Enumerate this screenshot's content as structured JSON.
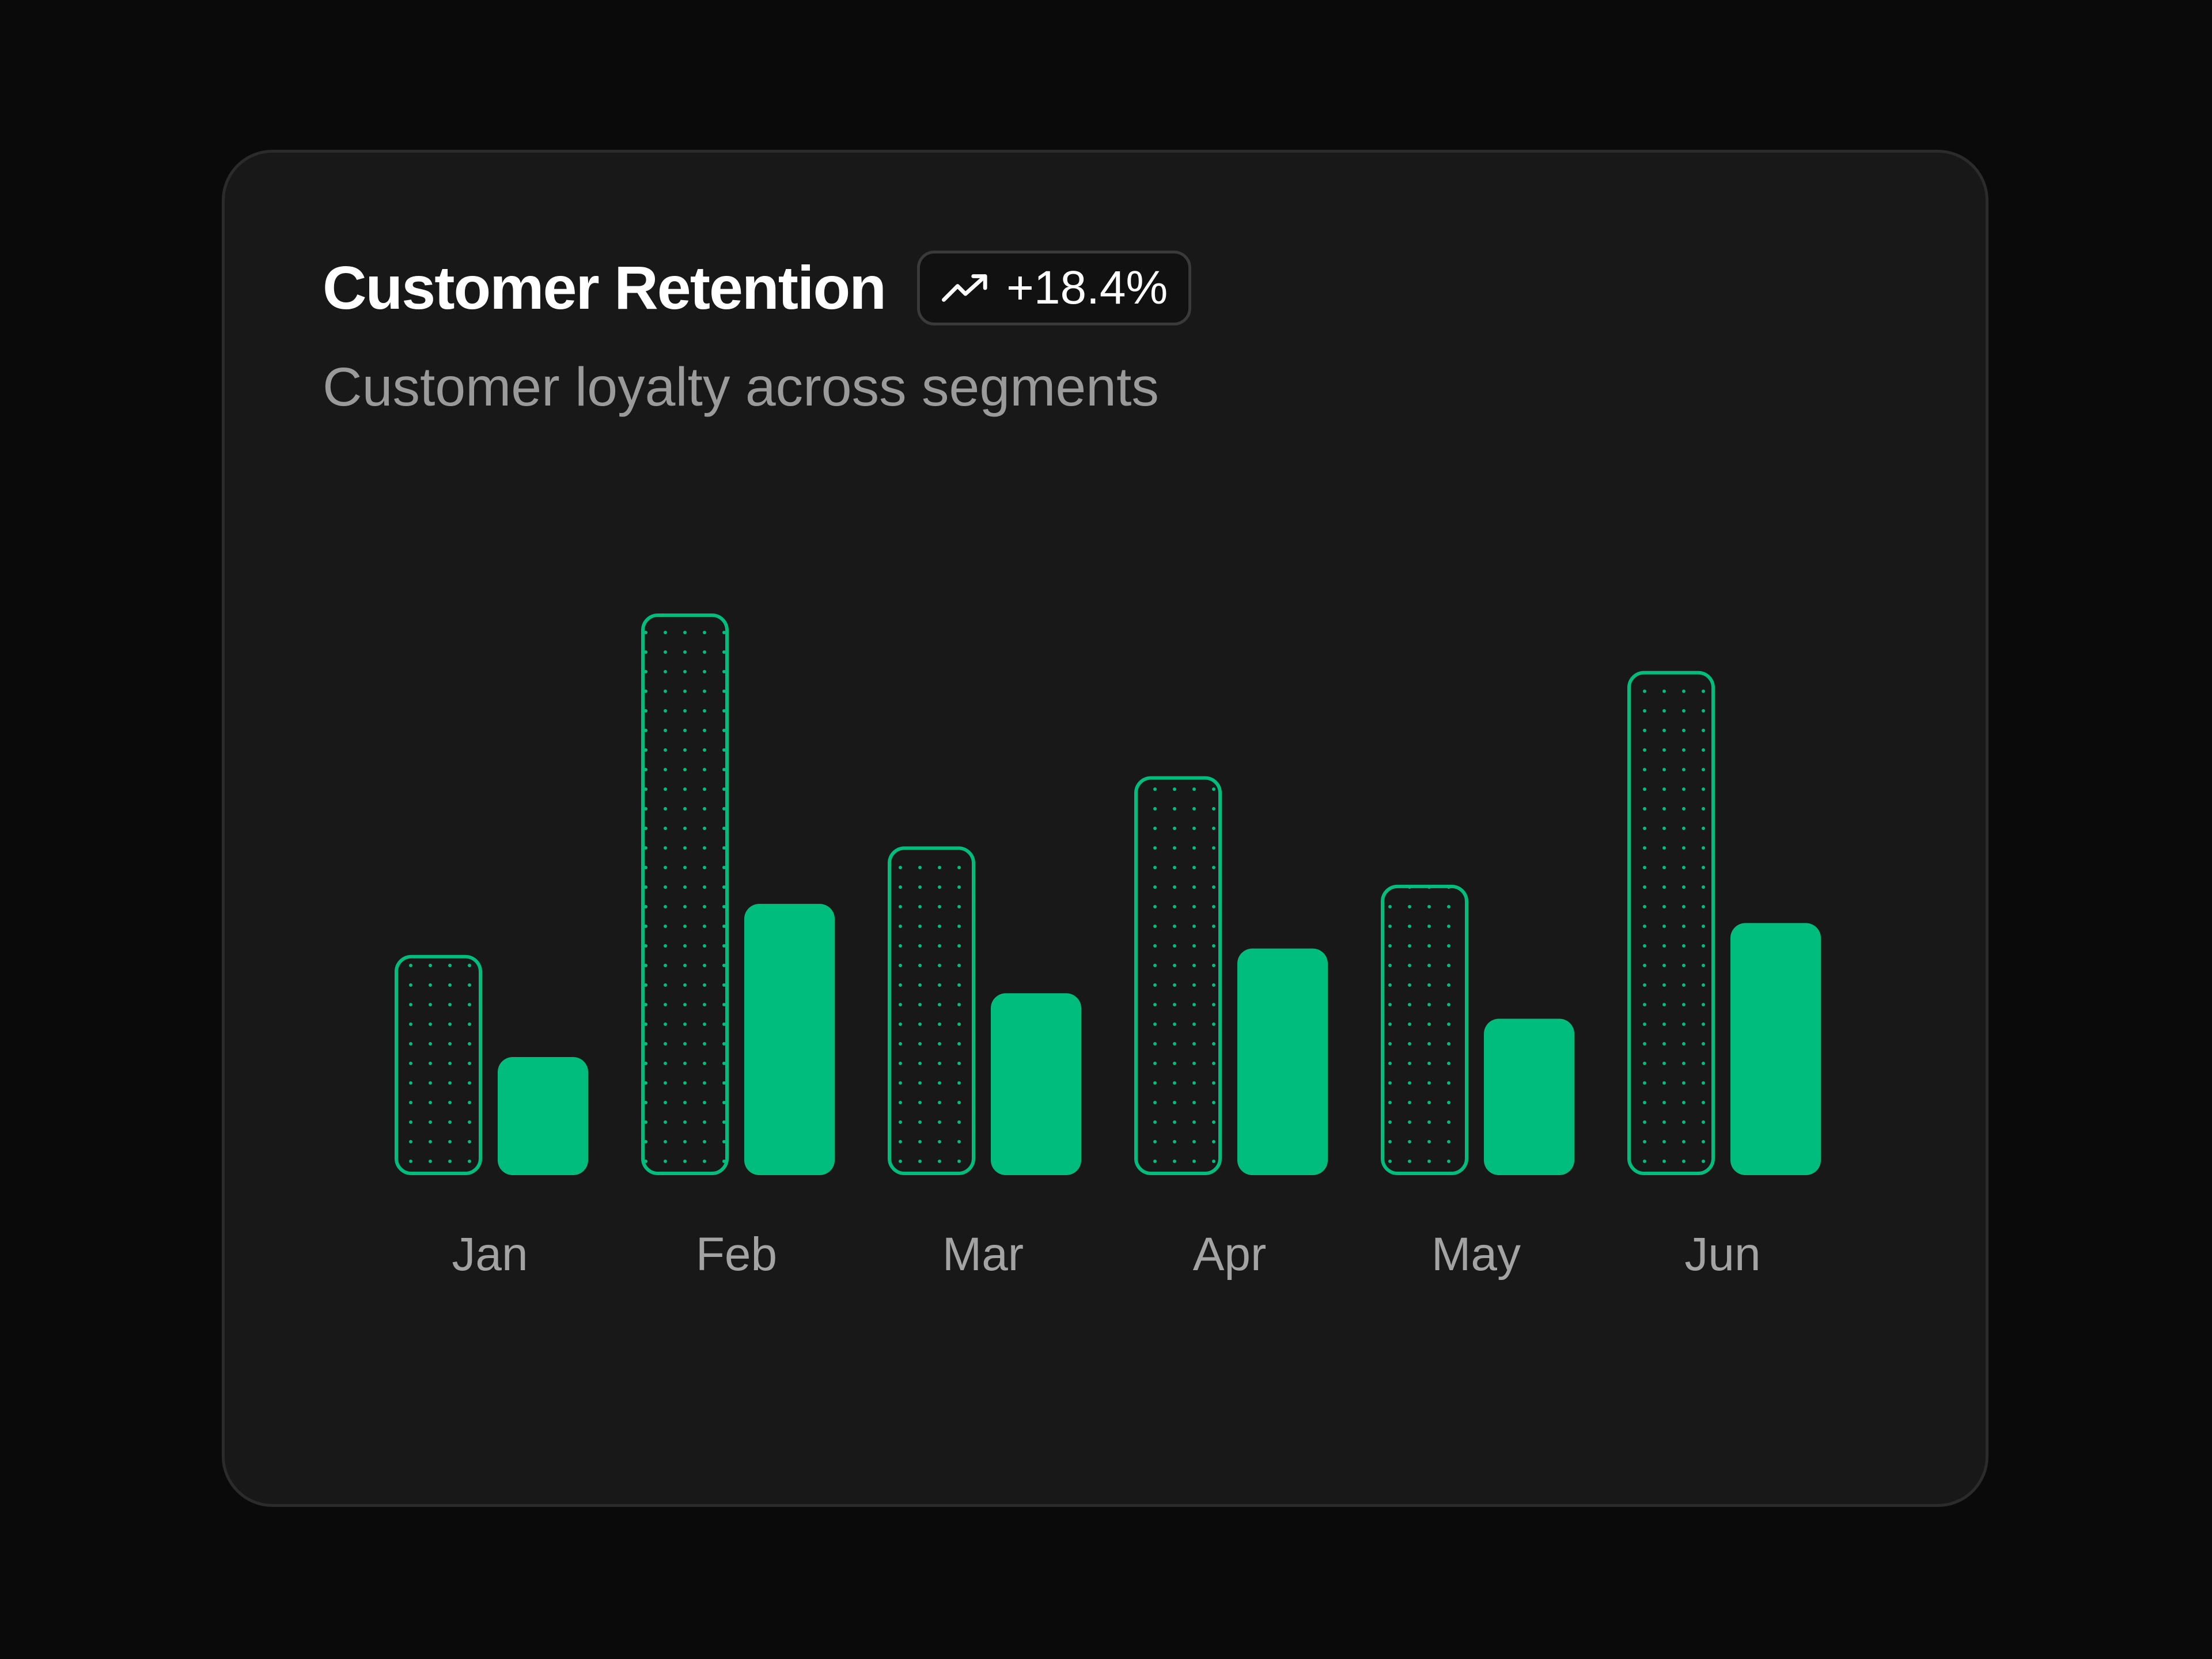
{
  "header": {
    "title": "Customer Retention",
    "badge_value": "+18.4%",
    "badge_icon": "trending-up-icon",
    "subtitle": "Customer loyalty across segments"
  },
  "colors": {
    "background": "#0a0a0a",
    "card": "#181818",
    "accent": "#00bc7d"
  },
  "chart_data": {
    "type": "bar",
    "categories": [
      "Jan",
      "Feb",
      "Mar",
      "Apr",
      "May",
      "Jun"
    ],
    "series": [
      {
        "style": "outlined-dotted",
        "values": [
          69,
          176,
          103,
          125,
          91,
          158
        ]
      },
      {
        "style": "solid",
        "values": [
          37,
          85,
          57,
          71,
          49,
          79
        ]
      }
    ],
    "ylim": [
      0,
      176
    ],
    "grid": false,
    "legend": "none"
  }
}
